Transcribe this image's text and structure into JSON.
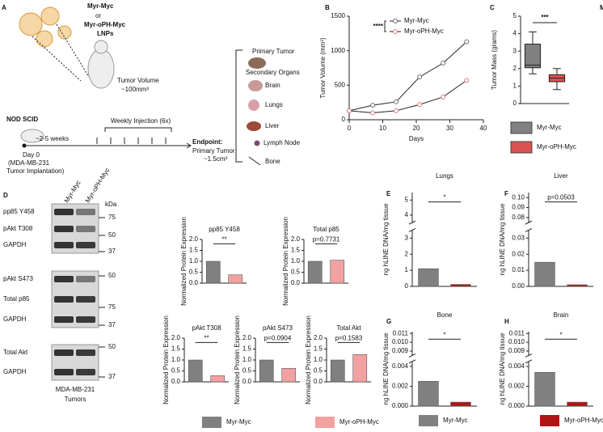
{
  "panels": [
    "A",
    "B",
    "C",
    "D",
    "E",
    "F",
    "G",
    "H",
    "M"
  ],
  "schematic": [
    "Myr-Myc",
    "or",
    "Myr-oPH-Myc",
    "LNPs",
    "Tumor Volume",
    "~100mm³",
    "NOD SCID",
    "~2-5 weeks",
    "Weekly Injection (6x)",
    "Day 0",
    "(MDA-MB-231",
    "Tumor Implantation)",
    "Endpoint:",
    "Primary Tumor",
    "~1.5cm³",
    "Primary Tumor",
    "Secondary Organs",
    "Brain",
    "Lungs",
    "Liver",
    "Lymph Node",
    "Bone"
  ],
  "blot": {
    "lanes": [
      "Myr-Myc",
      "Myr-oPH-Myc"
    ],
    "unit": "kDa",
    "rows": [
      "pp85 Y458",
      "pAkt T308",
      "GAPDH",
      "pAkt S473",
      "Total p85",
      "GAPDH",
      "Total Akt",
      "GAPDH"
    ],
    "markers": [
      75,
      50,
      37,
      50,
      75,
      37,
      50,
      37
    ],
    "caption": [
      "MDA-MB-231",
      "Tumors"
    ]
  },
  "legends": [
    [
      {
        "name": "Myr-Myc",
        "color": "#808080"
      },
      {
        "name": "Myr-oPH-Myc",
        "color": "#f2a1a1"
      }
    ],
    [
      {
        "name": "Myr-Myc",
        "color": "#808080"
      },
      {
        "name": "Myr-oPH-Myc",
        "color": "#b01515"
      }
    ]
  ],
  "chart_data": [
    {
      "type": "line",
      "ylabel": "Tumor Volume (mm³)",
      "xlabel": "Days",
      "annotation": "****",
      "x": [
        0,
        7,
        14,
        21,
        28,
        35
      ],
      "series": [
        {
          "name": "Myr-Myc",
          "color": "#707070",
          "values": [
            130,
            210,
            260,
            620,
            820,
            1130
          ]
        },
        {
          "name": "Myr-oPH-Myc",
          "color": "#e07b7b",
          "values": [
            130,
            100,
            130,
            220,
            330,
            570
          ]
        }
      ],
      "xlim": [
        0,
        40
      ],
      "xticks": [
        0,
        10,
        20,
        30,
        40
      ],
      "ylim": [
        0,
        1500
      ],
      "yticks": [
        0,
        500,
        1000,
        1500
      ]
    },
    {
      "type": "box",
      "ylabel": "Tumor Mass (grams)",
      "annotation": "***",
      "series": [
        {
          "name": "Myr-Myc",
          "color": "#808080",
          "min": 1.7,
          "q1": 2.05,
          "median": 2.2,
          "q3": 3.4,
          "max": 4.1
        },
        {
          "name": "Myr-oPH-Myc",
          "color": "#d9534f",
          "min": 0.8,
          "q1": 1.25,
          "median": 1.45,
          "q3": 1.65,
          "max": 2.0
        }
      ],
      "ylim": [
        0,
        5
      ],
      "yticks": [
        0,
        1,
        2,
        3,
        4,
        5
      ]
    },
    {
      "type": "bar",
      "title": "pp85 Y458",
      "annotation": "**",
      "ylabel": "Normalized Protein Expression",
      "values": [
        1.0,
        0.38
      ],
      "colors": [
        "#808080",
        "#f2a1a1"
      ],
      "ylim": [
        0,
        2
      ],
      "yticks": [
        {
          "value": 0,
          "label": "0.0"
        },
        0.5,
        {
          "value": 1,
          "label": "1.0"
        },
        1.5,
        {
          "value": 2,
          "label": "2.0"
        }
      ]
    },
    {
      "type": "bar",
      "title": "Total p85",
      "annotation": "p=0.7731",
      "ylabel": "Normalized Protein Expression",
      "values": [
        1.0,
        1.05
      ],
      "colors": [
        "#808080",
        "#f2a1a1"
      ],
      "ylim": [
        0,
        2
      ],
      "yticks": [
        {
          "value": 0,
          "label": "0.0"
        },
        0.5,
        {
          "value": 1,
          "label": "1.0"
        },
        1.5,
        {
          "value": 2,
          "label": "2.0"
        }
      ]
    },
    {
      "type": "bar",
      "title": "pAkt T308",
      "annotation": "**",
      "ylabel": "Normalized Protein Expression",
      "values": [
        1.0,
        0.28
      ],
      "colors": [
        "#808080",
        "#f2a1a1"
      ],
      "ylim": [
        0,
        2
      ],
      "yticks": [
        {
          "value": 0,
          "label": "0.0"
        },
        0.5,
        {
          "value": 1,
          "label": "1.0"
        },
        1.5,
        {
          "value": 2,
          "label": "2.0"
        }
      ]
    },
    {
      "type": "bar",
      "title": "pAkt S473",
      "annotation": "p=0.0904",
      "ylabel": "Normalized Protein Expression",
      "values": [
        1.0,
        0.62
      ],
      "colors": [
        "#808080",
        "#f2a1a1"
      ],
      "ylim": [
        0,
        2
      ],
      "yticks": [
        {
          "value": 0,
          "label": "0.0"
        },
        0.5,
        {
          "value": 1,
          "label": "1.0"
        },
        1.5,
        {
          "value": 2,
          "label": "2.0"
        }
      ]
    },
    {
      "type": "bar",
      "title": "Total Akt",
      "annotation": "p=0.1583",
      "ylabel": "Normalized Protein Expression",
      "values": [
        1.0,
        1.25
      ],
      "colors": [
        "#808080",
        "#f2a1a1"
      ],
      "ylim": [
        0,
        2
      ],
      "yticks": [
        {
          "value": 0,
          "label": "0.0"
        },
        0.5,
        {
          "value": 1,
          "label": "1.0"
        },
        1.5,
        {
          "value": 2,
          "label": "2.0"
        }
      ]
    },
    {
      "type": "bar",
      "title": "Lungs",
      "annotation": "*",
      "ylabel": "ng hLINE DNA/mg tissue",
      "values": [
        1.1,
        0.12
      ],
      "colors": [
        "#808080",
        "#b01515"
      ],
      "ylim": [
        0,
        3.5
      ],
      "yticks": [
        0,
        1,
        2,
        3
      ],
      "ylim_upper": [
        3.5,
        5.5
      ],
      "yticks_upper": [
        4,
        5
      ]
    },
    {
      "type": "bar",
      "title": "Liver",
      "annotation": "p=0.0503",
      "ylabel": "ng hLINE DNA/mg tissue",
      "values": [
        0.015,
        0.001
      ],
      "colors": [
        "#808080",
        "#b01515"
      ],
      "ylim": [
        0,
        0.035
      ],
      "yticks": [
        {
          "value": 0,
          "label": "0.00"
        },
        0.01,
        0.02,
        0.03
      ],
      "ylim_upper": [
        0.075,
        0.105
      ],
      "yticks_upper": [
        0.08,
        0.09,
        {
          "value": 0.1,
          "label": "0.10"
        }
      ]
    },
    {
      "type": "bar",
      "title": "Bone",
      "annotation": "*",
      "ylabel": "ng hLINE DNA/mg tissue",
      "values": [
        0.0025,
        0.0004
      ],
      "colors": [
        "#808080",
        "#b01515"
      ],
      "ylim": [
        0,
        0.0045
      ],
      "yticks": [
        {
          "value": 0,
          "label": "0.000"
        },
        0.002,
        0.004
      ],
      "ylim_upper": [
        0.0085,
        0.0112
      ],
      "yticks_upper": [
        0.009,
        {
          "value": 0.01,
          "label": "0.010"
        },
        0.011
      ]
    },
    {
      "type": "bar",
      "title": "Brain",
      "annotation": "*",
      "ylabel": "ng hLINE DNA/mg tissue",
      "values": [
        0.0034,
        0.0004
      ],
      "colors": [
        "#808080",
        "#b01515"
      ],
      "ylim": [
        0,
        0.0045
      ],
      "yticks": [
        {
          "value": 0,
          "label": "0.000"
        },
        0.002,
        0.004
      ],
      "ylim_upper": [
        0.0085,
        0.0112
      ],
      "yticks_upper": [
        0.009,
        {
          "value": 0.01,
          "label": "0.010"
        },
        0.011
      ]
    }
  ]
}
